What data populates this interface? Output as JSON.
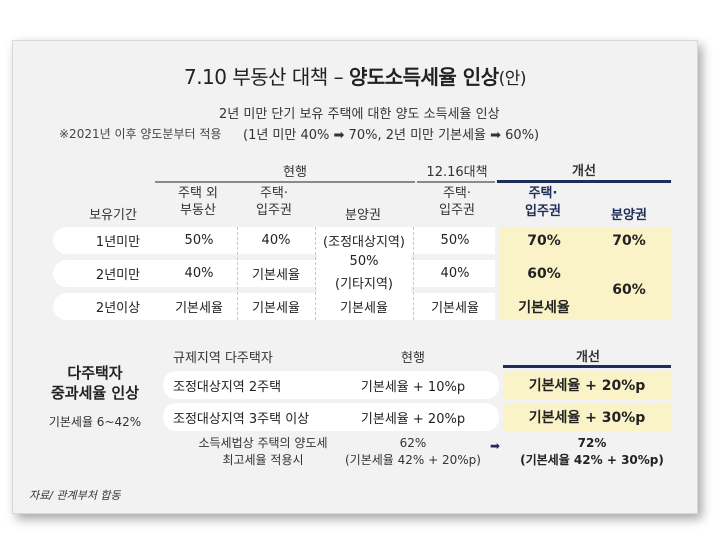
{
  "title": {
    "prefix": "7.10 부동산 대책 – ",
    "bold": "양도소득세율 인상",
    "suffix": "(안)"
  },
  "subtitle": {
    "line1": "2년 미만 단기 보유 주택에 대한 양도 소득세율 인상",
    "note": "※2021년 이후 양도분부터 적용",
    "line2a": "(1년 미만 40% ",
    "line2b": " 70%, 2년 미만 기본세율 ",
    "line2c": " 60%)"
  },
  "table1": {
    "group_current": "현행",
    "group_1216": "12.16대책",
    "group_improved": "개선",
    "row_header": "보유기간",
    "columns": [
      "주택 외\n부동산",
      "주택·\n입주권",
      "분양권",
      "주택·\n입주권",
      "주택·\n입주권",
      "분양권"
    ],
    "rows": [
      {
        "label": "1년미만",
        "c1": "50%",
        "c2": "40%",
        "c4": "50%",
        "c5": "70%",
        "c6": "70%"
      },
      {
        "label": "2년미만",
        "c1": "40%",
        "c2": "기본세율",
        "c4": "40%",
        "c5": "60%"
      },
      {
        "label": "2년이상",
        "c1": "기본세율",
        "c2": "기본세율",
        "c3": "기본세율",
        "c4": "기본세율",
        "c5": "기본세율"
      }
    ],
    "bunyang_merged": [
      "(조정대상지역)",
      "50%",
      "(기타지역)"
    ],
    "improved_bunyang_merged": "60%"
  },
  "table2": {
    "side_title1": "다주택자",
    "side_title2": "중과세율 인상",
    "side_sub": "기본세율 6~42%",
    "h1": "규제지역 다주택자",
    "h2": "현행",
    "h3": "개선",
    "rows": [
      {
        "label": "조정대상지역 2주택",
        "current": "기본세율 + 10%p",
        "improved": "기본세율 + 20%p"
      },
      {
        "label": "조정대상지역 3주택 이상",
        "current": "기본세율 + 20%p",
        "improved": "기본세율 + 30%p"
      }
    ],
    "last": {
      "label1": "소득세법상 주택의 양도세",
      "label2": "최고세율 적용시",
      "current1": "62%",
      "current2": "(기본세율 42% + 20%p)",
      "improved1": "72%",
      "improved2": "(기본세율 42% + 30%p)"
    }
  },
  "footer": "자료/ 관계부처 합동",
  "colors": {
    "navy": "#1f2d5a",
    "highlight": "#fbf3c8",
    "gray_line": "#8a8a8a"
  }
}
